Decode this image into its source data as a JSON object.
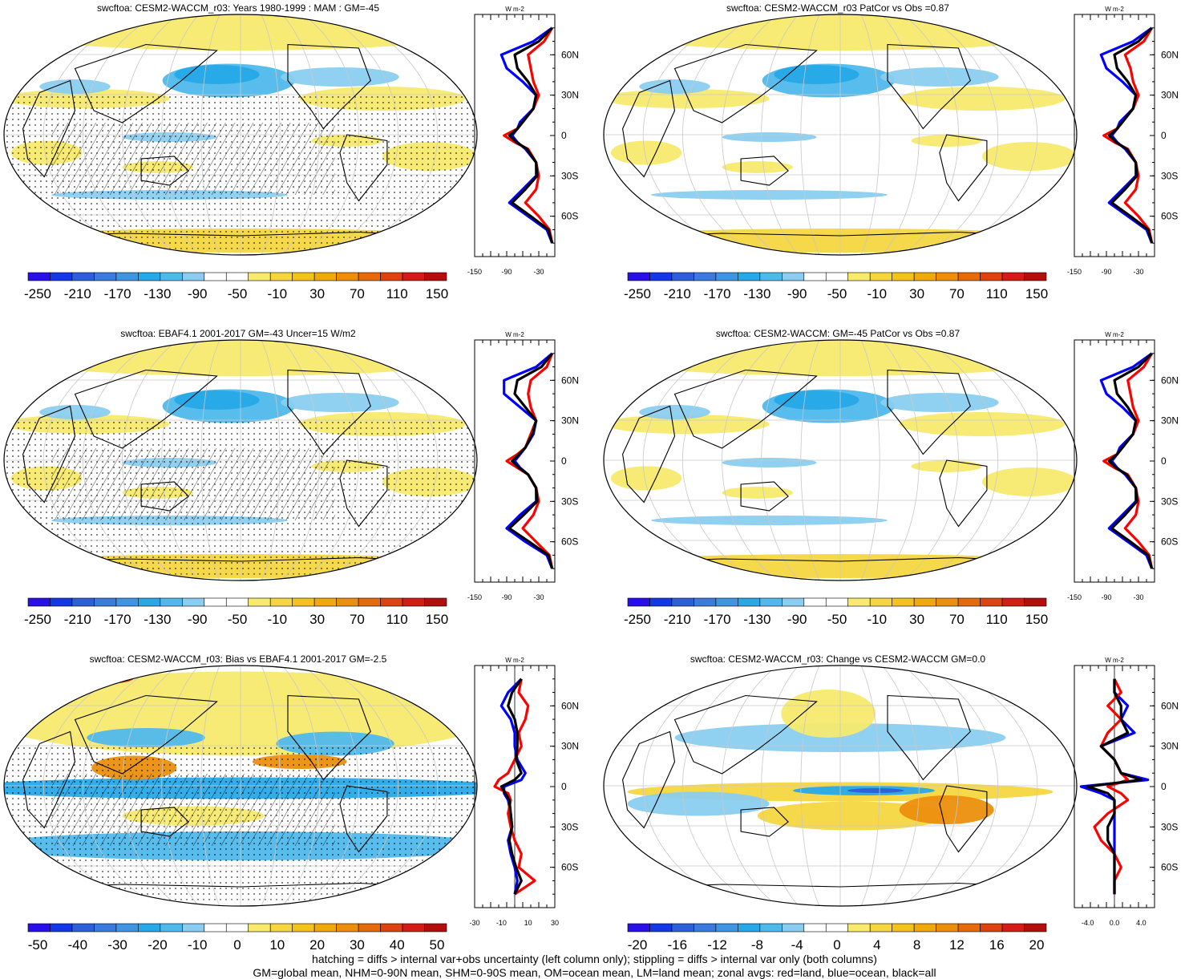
{
  "colors": {
    "negative_scale": [
      "#2a0fe8",
      "#1538e6",
      "#2d5fd9",
      "#3a7bdc",
      "#3f95e2",
      "#27a9e8",
      "#4fb9ec",
      "#8acdf0"
    ],
    "positive_scale": [
      "#f7ea6e",
      "#f5d641",
      "#f3c21c",
      "#f0a90c",
      "#ec8f0c",
      "#e56a0c",
      "#dd4310",
      "#d21c15",
      "#b30e0e"
    ],
    "white": "#ffffff",
    "land_line": "#ff0000",
    "ocean_line": "#0000ff",
    "all_line": "#000000"
  },
  "footer": {
    "line1": "hatching = diffs > internal var+obs uncertainty (left column only); stippling = diffs > internal var only (both columns)",
    "line2": "GM=global mean, NHM=0-90N mean, SHM=0-90S mean, OM=ocean mean, LM=land mean; zonal avgs: red=land, blue=ocean, black=all"
  },
  "units_label": "W m-2",
  "lat_labels": [
    "60N",
    "30N",
    "0",
    "30S",
    "60S"
  ],
  "chart_data": [
    {
      "type": "heatmap",
      "title": "swcftoa: CESM2-WACCM_r03: Years 1980-1999 : MAM : GM=-45",
      "colorbar_labels": [
        "-250",
        "-210",
        "-170",
        "-130",
        "-90",
        "-50",
        "-10",
        "30",
        "70",
        "110",
        "150"
      ],
      "zonal_xticks": [
        "-150",
        "-90",
        "-30"
      ],
      "zonal_xlim": [
        -150,
        0
      ],
      "zonal": {
        "lat": [
          80,
          70,
          60,
          50,
          40,
          30,
          20,
          10,
          5,
          0,
          -5,
          -10,
          -20,
          -30,
          -40,
          -50,
          -60,
          -70,
          -80
        ],
        "land": [
          -5,
          -20,
          -50,
          -45,
          -40,
          -30,
          -40,
          -60,
          -70,
          -95,
          -75,
          -50,
          -35,
          -30,
          -35,
          -55,
          -30,
          -10,
          -5
        ],
        "ocean": [
          -5,
          -40,
          -100,
          -90,
          -60,
          -35,
          -40,
          -65,
          -70,
          -80,
          -70,
          -55,
          -35,
          -35,
          -60,
          -85,
          -50,
          -15,
          -5
        ],
        "all": [
          -5,
          -30,
          -75,
          -70,
          -50,
          -35,
          -40,
          -60,
          -70,
          -85,
          -72,
          -52,
          -35,
          -33,
          -55,
          -80,
          -45,
          -12,
          -5
        ]
      }
    },
    {
      "type": "heatmap",
      "title": "swcftoa: CESM2-WACCM_r03 PatCor vs Obs =0.87",
      "colorbar_labels": [
        "-250",
        "-210",
        "-170",
        "-130",
        "-90",
        "-50",
        "-10",
        "30",
        "70",
        "110",
        "150"
      ],
      "zonal_xticks": [
        "-150",
        "-90",
        "-30"
      ],
      "zonal_xlim": [
        -150,
        0
      ],
      "zonal": {
        "lat": [
          80,
          70,
          60,
          50,
          40,
          30,
          20,
          10,
          5,
          0,
          -5,
          -10,
          -20,
          -30,
          -40,
          -50,
          -60,
          -70,
          -80
        ],
        "land": [
          -5,
          -20,
          -55,
          -45,
          -40,
          -30,
          -40,
          -60,
          -70,
          -95,
          -75,
          -50,
          -35,
          -30,
          -35,
          -55,
          -30,
          -10,
          -5
        ],
        "ocean": [
          -5,
          -40,
          -100,
          -90,
          -60,
          -35,
          -40,
          -65,
          -70,
          -80,
          -70,
          -55,
          -35,
          -35,
          -60,
          -85,
          -50,
          -15,
          -5
        ],
        "all": [
          -5,
          -30,
          -75,
          -70,
          -50,
          -35,
          -40,
          -60,
          -70,
          -85,
          -72,
          -52,
          -35,
          -33,
          -55,
          -80,
          -45,
          -12,
          -5
        ]
      }
    },
    {
      "type": "heatmap",
      "title": "swcftoa: EBAF4.1 2001-2017 GM=-43 Uncer=15 W/m2",
      "colorbar_labels": [
        "-250",
        "-210",
        "-170",
        "-130",
        "-90",
        "-50",
        "-10",
        "30",
        "70",
        "110",
        "150"
      ],
      "zonal_xticks": [
        "-150",
        "-90",
        "-30"
      ],
      "zonal_xlim": [
        -150,
        0
      ],
      "zonal": {
        "lat": [
          80,
          70,
          60,
          50,
          40,
          30,
          20,
          10,
          5,
          0,
          -5,
          -10,
          -20,
          -30,
          -40,
          -50,
          -60,
          -70,
          -80
        ],
        "land": [
          -5,
          -15,
          -45,
          -50,
          -45,
          -35,
          -45,
          -55,
          -70,
          -90,
          -70,
          -50,
          -35,
          -30,
          -40,
          -60,
          -35,
          -10,
          -5
        ],
        "ocean": [
          -5,
          -35,
          -95,
          -95,
          -65,
          -35,
          -40,
          -55,
          -65,
          -75,
          -65,
          -50,
          -35,
          -35,
          -65,
          -90,
          -55,
          -15,
          -5
        ],
        "all": [
          -5,
          -25,
          -70,
          -75,
          -55,
          -35,
          -42,
          -55,
          -67,
          -80,
          -67,
          -50,
          -35,
          -33,
          -58,
          -85,
          -48,
          -12,
          -5
        ]
      }
    },
    {
      "type": "heatmap",
      "title": "swcftoa: CESM2-WACCM: GM=-45 PatCor vs Obs =0.87",
      "colorbar_labels": [
        "-250",
        "-210",
        "-170",
        "-130",
        "-90",
        "-50",
        "-10",
        "30",
        "70",
        "110",
        "150"
      ],
      "zonal_xticks": [
        "-150",
        "-90",
        "-30"
      ],
      "zonal_xlim": [
        -150,
        0
      ],
      "zonal": {
        "lat": [
          80,
          70,
          60,
          50,
          40,
          30,
          20,
          10,
          5,
          0,
          -5,
          -10,
          -20,
          -30,
          -40,
          -50,
          -60,
          -70,
          -80
        ],
        "land": [
          -5,
          -20,
          -50,
          -45,
          -40,
          -30,
          -40,
          -60,
          -70,
          -95,
          -75,
          -50,
          -35,
          -30,
          -35,
          -55,
          -30,
          -10,
          -5
        ],
        "ocean": [
          -5,
          -40,
          -100,
          -90,
          -60,
          -35,
          -40,
          -65,
          -70,
          -80,
          -70,
          -55,
          -35,
          -35,
          -60,
          -85,
          -50,
          -15,
          -5
        ],
        "all": [
          -5,
          -30,
          -75,
          -70,
          -50,
          -35,
          -40,
          -60,
          -70,
          -85,
          -72,
          -52,
          -35,
          -33,
          -55,
          -80,
          -45,
          -12,
          -5
        ]
      }
    },
    {
      "type": "heatmap",
      "title": "swcftoa: CESM2-WACCM_r03: Bias vs EBAF4.1 2001-2017 GM=-2.5",
      "colorbar_labels": [
        "-50",
        "-40",
        "-30",
        "-20",
        "-10",
        "0",
        "10",
        "20",
        "30",
        "40",
        "50"
      ],
      "zonal_xticks": [
        "-30",
        "-10",
        "10",
        "30"
      ],
      "zonal_xlim": [
        -30,
        30
      ],
      "zonal": {
        "lat": [
          80,
          70,
          60,
          50,
          40,
          30,
          20,
          10,
          5,
          0,
          -5,
          -10,
          -20,
          -30,
          -40,
          -50,
          -60,
          -70,
          -80
        ],
        "land": [
          5,
          3,
          10,
          8,
          3,
          5,
          0,
          -5,
          -12,
          -15,
          -5,
          -3,
          -5,
          -3,
          0,
          5,
          3,
          15,
          0
        ],
        "ocean": [
          5,
          -5,
          -10,
          -3,
          0,
          0,
          2,
          8,
          5,
          -8,
          -8,
          -5,
          -3,
          -2,
          -5,
          -3,
          0,
          2,
          0
        ],
        "all": [
          5,
          -2,
          -5,
          0,
          2,
          2,
          1,
          5,
          0,
          -10,
          -7,
          -4,
          -3,
          -2,
          -4,
          -2,
          1,
          5,
          0
        ]
      }
    },
    {
      "type": "heatmap",
      "title": "swcftoa: CESM2-WACCM_r03: Change vs CESM2-WACCM GM=0.0",
      "colorbar_labels": [
        "-20",
        "-16",
        "-12",
        "-8",
        "-4",
        "0",
        "4",
        "8",
        "12",
        "16",
        "20"
      ],
      "zonal_xticks": [
        "-4.0",
        "0.0",
        "4.0"
      ],
      "zonal_xlim": [
        -6,
        6
      ],
      "zonal": {
        "lat": [
          80,
          70,
          60,
          50,
          40,
          30,
          20,
          10,
          5,
          0,
          -5,
          -10,
          -20,
          -30,
          -40,
          -50,
          -60,
          -70,
          -80
        ],
        "land": [
          0,
          1,
          -1,
          1,
          -1,
          -2,
          0,
          1,
          2,
          -1,
          1,
          2,
          -1,
          -3,
          -2,
          0,
          1,
          0,
          0
        ],
        "ocean": [
          0,
          0,
          2,
          1,
          3,
          -2,
          0,
          1,
          5,
          -5,
          -2,
          0,
          0,
          0,
          0,
          0,
          0,
          0,
          0
        ],
        "all": [
          0,
          0,
          1,
          1,
          2,
          -2,
          0,
          1,
          4,
          -4,
          -1,
          0,
          0,
          -1,
          -1,
          0,
          0,
          0,
          0
        ]
      }
    }
  ]
}
